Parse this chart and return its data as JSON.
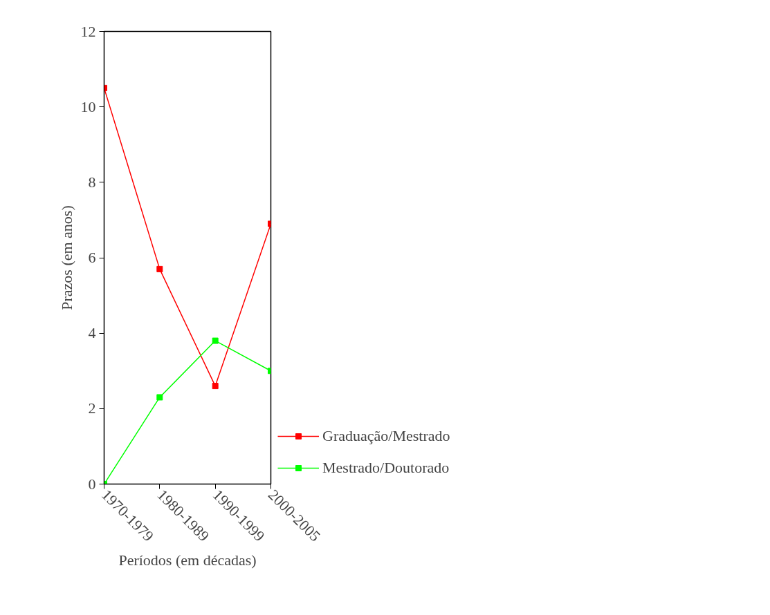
{
  "chart_data": {
    "type": "line",
    "xlabel": "Períodos (em décadas)",
    "ylabel": "Prazos (em anos)",
    "categories": [
      "1970-1979",
      "1980-1989",
      "1990-1999",
      "2000-2005"
    ],
    "series": [
      {
        "name": "Graduação/Mestrado",
        "color": "#ff0000",
        "values": [
          10.5,
          5.7,
          2.6,
          6.9
        ]
      },
      {
        "name": "Mestrado/Doutorado",
        "color": "#00ff00",
        "values": [
          0,
          2.3,
          3.8,
          3.0
        ]
      }
    ],
    "ylim": [
      0,
      12
    ],
    "yticks": [
      0,
      2,
      4,
      6,
      8,
      10,
      12
    ],
    "grid": false,
    "legend": "right",
    "marker": "square",
    "line_style": "solid"
  }
}
